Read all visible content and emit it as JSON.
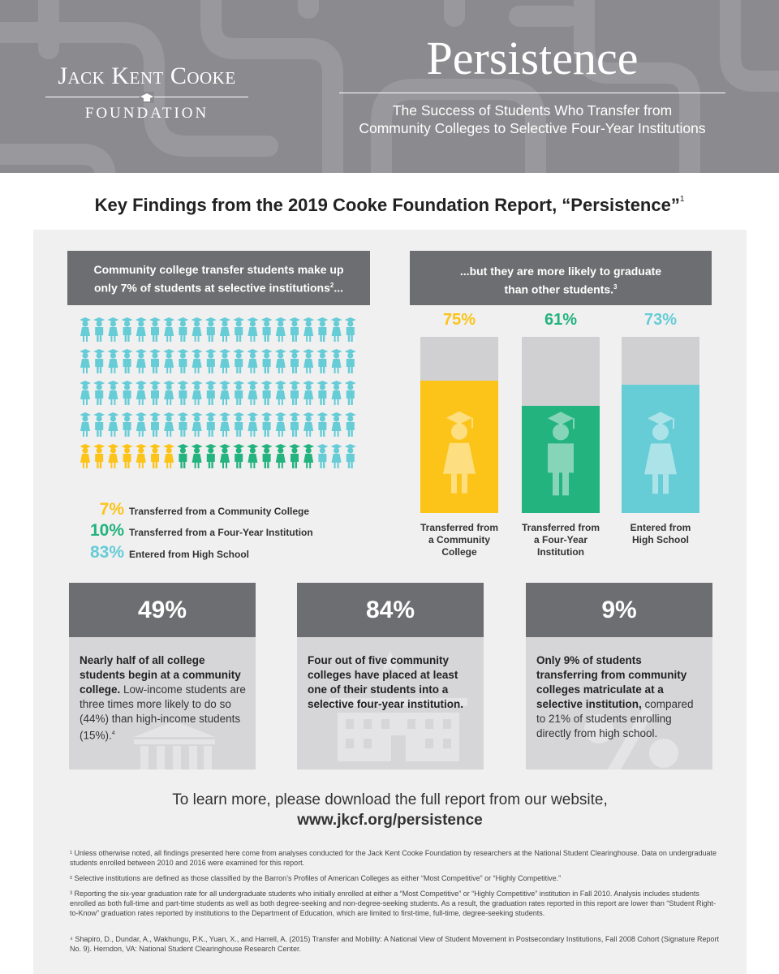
{
  "header": {
    "logo_line1": "Jack Kent Cooke",
    "logo_line2": "FOUNDATION",
    "title": "Persistence",
    "subtitle_line1": "The Success of Students Who Transfer from",
    "subtitle_line2": "Community Colleges to Selective Four-Year Institutions"
  },
  "main_heading": "Key Findings from the 2019 Cooke Foundation Report, “Persistence”",
  "main_heading_note": "1",
  "left_box": {
    "line1": "Community college transfer students make up",
    "line2": "only 7% of students at selective institutions",
    "note": "2",
    "ellipsis": "..."
  },
  "right_box": {
    "line1": "...but they are more likely to graduate",
    "line2": "than other students.",
    "note": "3"
  },
  "colors": {
    "yellow": "#fcc419",
    "green": "#23b37e",
    "blue": "#66ccd6",
    "dark_gray": "#6d6e71",
    "panel": "#f0f0f1"
  },
  "figure_grid": {
    "rows": 5,
    "cols": 20,
    "counts": {
      "community_college": 7,
      "four_year": 10,
      "high_school": 83
    }
  },
  "legend": [
    {
      "pct": "7%",
      "label": "Transferred from a Community College",
      "color": "#fcc419"
    },
    {
      "pct": "10%",
      "label": "Transferred from a Four-Year Institution",
      "color": "#23b37e"
    },
    {
      "pct": "83%",
      "label": "Entered from High School",
      "color": "#66ccd6"
    }
  ],
  "chart_data": {
    "type": "bar",
    "categories": [
      "Transferred from a Community College",
      "Transferred from a Four-Year Institution",
      "Entered from High School"
    ],
    "values": [
      75,
      61,
      73
    ],
    "value_labels": [
      "75%",
      "61%",
      "73%"
    ],
    "ylim": [
      0,
      100
    ],
    "label_lines": [
      [
        "Transferred from",
        "a Community",
        "College"
      ],
      [
        "Transferred from",
        "a Four-Year",
        "Institution"
      ],
      [
        "Entered from",
        "High School"
      ]
    ]
  },
  "stats": [
    {
      "value": "49%",
      "bold": "Nearly half of all college students begin at a community college.",
      "rest": " Low-income students are three times more likely to do so (44%) than high-income students (15%).",
      "note": "4"
    },
    {
      "value": "84%",
      "bold": "Four out of five community colleges have placed at least one of their students into a selective four-year institution.",
      "rest": "",
      "note": ""
    },
    {
      "value": "9%",
      "bold": "Only 9% of students transferring from community colleges matriculate at a selective institution,",
      "rest": " compared to 21% of students enrolling directly from high school.",
      "note": ""
    }
  ],
  "learn_more": {
    "line1": "To learn more, please download the full report from our website,",
    "url": "www.jkcf.org/persistence"
  },
  "footnotes": [
    "¹ Unless otherwise noted, all findings presented here come from analyses conducted for the Jack Kent Cooke Foundation by researchers at the National Student Clearinghouse.  Data on undergraduate students enrolled between 2010 and 2016 were examined for this report.",
    "² Selective institutions are defined as those classified by the Barron’s Profiles of American Colleges as either “Most Competitive” or “Highly Competitive.”",
    "³ Reporting the six-year graduation rate for all undergraduate students who initially enrolled at either a “Most Competitive” or “Highly Competitive” institution in Fall 2010.  Analysis includes students enrolled as both full-time and part-time students as well as both degree-seeking and non-degree-seeking students.  As a result, the graduation rates reported in this report are lower than “Student Right-to-Know” graduation rates reported by institutions to the Department of Education, which are limited to first-time, full-time, degree-seeking students.",
    "⁴ Shapiro, D., Dundar, A., Wakhungu, P.K., Yuan, X., and Harrell, A. (2015) Transfer and Mobility: A National View of Student Movement in Postsecondary Institutions, Fall 2008 Cohort (Signature Report No. 9).  Herndon, VA: National Student Clearinghouse Research Center."
  ]
}
